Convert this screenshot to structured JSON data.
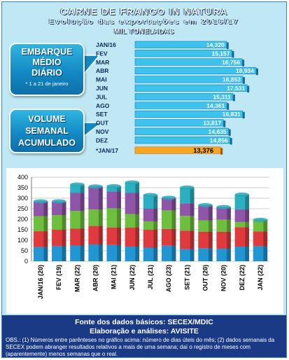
{
  "header": {
    "title": "CARNE DE FRANGO IN NATURA",
    "subtitle": "Evolução das exportações em 2016/17",
    "unit": "MIL TONELADAS"
  },
  "callouts": {
    "daily": {
      "lines": [
        "EMBARQUE",
        "MÉDIO",
        "DIÁRIO"
      ],
      "note": "* 1 a 21 de janeiro"
    },
    "weekly": {
      "lines": [
        "VOLUME",
        "SEMANAL",
        "ACUMULADO"
      ]
    }
  },
  "chart_data": [
    {
      "type": "bar",
      "orientation": "horizontal",
      "categories": [
        "JAN/16",
        "FEV",
        "MAR",
        "ABR",
        "MAI",
        "JUN",
        "JUL",
        "AGO",
        "SET",
        "OUT",
        "NOV",
        "DEZ",
        "*JAN/17"
      ],
      "values": [
        14320,
        15157,
        16756,
        18934,
        16853,
        17531,
        15311,
        14361,
        16831,
        13817,
        14635,
        14856,
        13376
      ],
      "value_labels": [
        "14,320",
        "15,157",
        "16,756",
        "18,934",
        "16,853",
        "17,531",
        "15,311",
        "14,361",
        "16,831",
        "13,817",
        "14,635",
        "14,856",
        "13,376"
      ],
      "colors": {
        "bar": "#3ec4ec",
        "highlight": "#f6a623"
      }
    },
    {
      "type": "bar",
      "stacked": true,
      "categories": [
        "JAN/16 (20)",
        "FEV (19)",
        "MAR (22)",
        "ABR (20)",
        "MAI (21)",
        "JUN (22)",
        "JUL (21)",
        "AGO (23)",
        "SET (21)",
        "OUT (20)",
        "NOV (20)",
        "DEZ (22)",
        "JAN (22)"
      ],
      "ylim": [
        0,
        400
      ],
      "yticks": [
        "0",
        "50",
        "100",
        "150",
        "200",
        "250",
        "300",
        "350",
        "400"
      ],
      "series": [
        {
          "values": [
            68,
            72,
            75,
            80,
            78,
            70,
            65,
            74,
            58,
            62,
            60,
            70,
            72
          ]
        },
        {
          "values": [
            75,
            78,
            80,
            88,
            82,
            90,
            85,
            80,
            88,
            78,
            80,
            92,
            70
          ]
        },
        {
          "values": [
            72,
            70,
            85,
            78,
            92,
            65,
            40,
            88,
            70,
            55,
            58,
            25,
            55
          ]
        },
        {
          "values": [
            70,
            65,
            85,
            110,
            80,
            100,
            60,
            60,
            60,
            72,
            60,
            60,
            0
          ]
        },
        {
          "values": [
            0,
            0,
            40,
            0,
            25,
            50,
            65,
            0,
            75,
            0,
            0,
            70,
            0
          ]
        }
      ],
      "colors": [
        "#2196d3",
        "#e03a3e",
        "#6fbf3f",
        "#8e55a8",
        "#2bb0c2"
      ]
    }
  ],
  "footer": {
    "source": "Fonte dos dados básicos: SECEX/MDIC",
    "analysis": "Elaboração e análises: AVISITE",
    "note": "OBS.: (1) Números entre parênteses no gráfico acima: número de dias úteis do mês; (2) dados semanais da SECEX podem abranger resultados relativos a mais de uma semana; daí o registro de meses com (aparentemente) menos semanas que o real."
  }
}
